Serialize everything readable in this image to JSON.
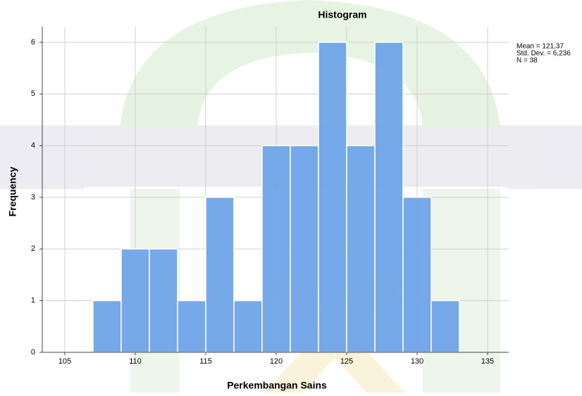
{
  "chart_data": {
    "type": "histogram",
    "title": "Histogram",
    "x_label": "Perkembangan Sains",
    "y_label": "Frequency",
    "bins": [
      107,
      109,
      111,
      113,
      115,
      117,
      119,
      121,
      123,
      125,
      127,
      129,
      131,
      133
    ],
    "values": [
      1,
      2,
      2,
      1,
      3,
      1,
      4,
      4,
      6,
      4,
      6,
      3,
      1
    ],
    "color": "#6aa2e8",
    "xlim": [
      103.4,
      136.5
    ],
    "xticks": [
      105,
      110,
      115,
      120,
      125,
      130,
      135
    ],
    "ylim": [
      0,
      6.3
    ],
    "yticks": [
      0,
      1,
      2,
      3,
      4,
      5,
      6
    ],
    "grid": true,
    "annotations": [
      "Mean = 121,37",
      "Std. Dev. = 6,236",
      "N = 38"
    ]
  }
}
